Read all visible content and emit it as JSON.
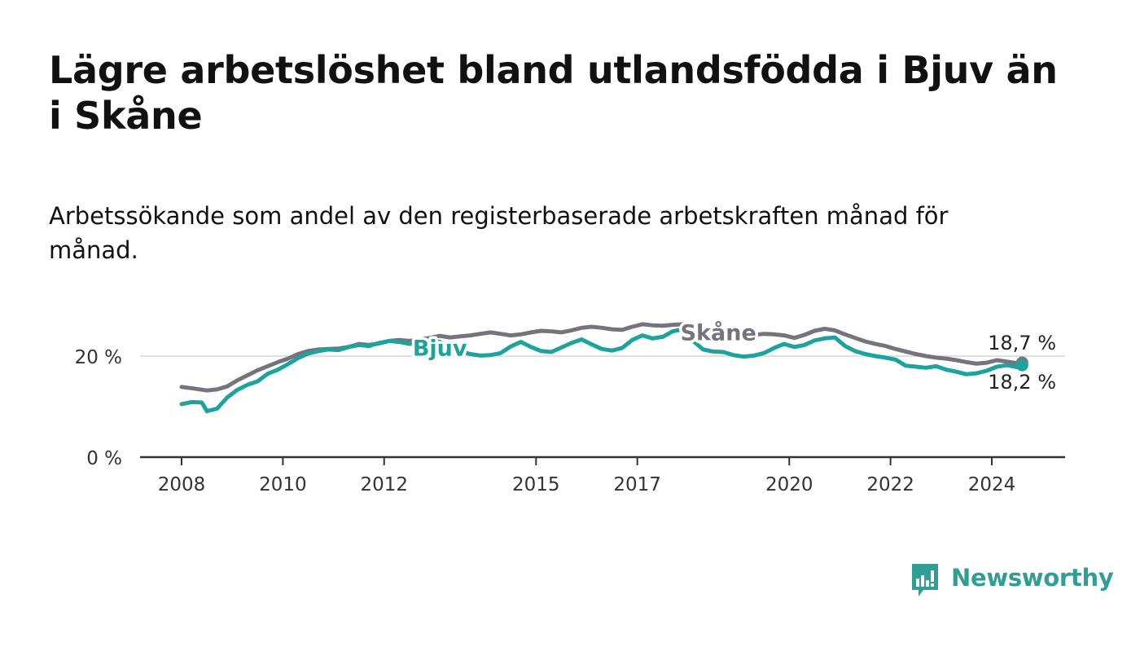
{
  "title": "Lägre arbetslöshet bland utlandsfödda i Bjuv än i Skåne",
  "subtitle": "Arbetssökande som andel av den registerbaserade arbetskraften månad för månad.",
  "logo": {
    "text": "Newsworthy",
    "icon": "bar-chart-speech-bubble-icon",
    "color": "#2f9e94"
  },
  "colors": {
    "bjuv": "#1ba39c",
    "skane": "#77737e",
    "grid": "#d6d6d6",
    "axis": "#333333"
  },
  "chart_data": {
    "type": "line",
    "title": "Lägre arbetslöshet bland utlandsfödda i Bjuv än i Skåne",
    "xlabel": "",
    "ylabel": "",
    "x_range": [
      2007.1,
      2025.4
    ],
    "ylim": [
      0,
      30
    ],
    "y_ticks": [
      {
        "value": 0,
        "label": "0 %"
      },
      {
        "value": 20,
        "label": "20 %"
      }
    ],
    "x_ticks": [
      {
        "value": 2008,
        "label": "2008"
      },
      {
        "value": 2010,
        "label": "2010"
      },
      {
        "value": 2012,
        "label": "2012"
      },
      {
        "value": 2015,
        "label": "2015"
      },
      {
        "value": 2017,
        "label": "2017"
      },
      {
        "value": 2020,
        "label": "2020"
      },
      {
        "value": 2022,
        "label": "2022"
      },
      {
        "value": 2024,
        "label": "2024"
      }
    ],
    "series": [
      {
        "name": "Skåne",
        "label": "Skåne",
        "color": "#77737e",
        "end_label": "18,7 %",
        "points": [
          [
            2008.0,
            13.9
          ],
          [
            2008.3,
            13.5
          ],
          [
            2008.5,
            13.2
          ],
          [
            2008.7,
            13.4
          ],
          [
            2008.9,
            14.0
          ],
          [
            2009.1,
            15.2
          ],
          [
            2009.3,
            16.2
          ],
          [
            2009.5,
            17.2
          ],
          [
            2009.7,
            18.0
          ],
          [
            2009.9,
            18.8
          ],
          [
            2010.1,
            19.5
          ],
          [
            2010.3,
            20.4
          ],
          [
            2010.5,
            21.0
          ],
          [
            2010.7,
            21.3
          ],
          [
            2010.9,
            21.4
          ],
          [
            2011.1,
            21.5
          ],
          [
            2011.3,
            21.8
          ],
          [
            2011.5,
            22.4
          ],
          [
            2011.7,
            22.2
          ],
          [
            2011.9,
            22.5
          ],
          [
            2012.1,
            23.0
          ],
          [
            2012.3,
            23.2
          ],
          [
            2012.5,
            23.0
          ],
          [
            2012.7,
            23.3
          ],
          [
            2012.9,
            23.6
          ],
          [
            2013.1,
            24.0
          ],
          [
            2013.3,
            23.7
          ],
          [
            2013.5,
            23.9
          ],
          [
            2013.7,
            24.1
          ],
          [
            2013.9,
            24.4
          ],
          [
            2014.1,
            24.7
          ],
          [
            2014.3,
            24.4
          ],
          [
            2014.5,
            24.1
          ],
          [
            2014.7,
            24.3
          ],
          [
            2014.9,
            24.7
          ],
          [
            2015.1,
            25.0
          ],
          [
            2015.3,
            24.9
          ],
          [
            2015.5,
            24.7
          ],
          [
            2015.7,
            25.1
          ],
          [
            2015.9,
            25.6
          ],
          [
            2016.1,
            25.8
          ],
          [
            2016.3,
            25.6
          ],
          [
            2016.5,
            25.3
          ],
          [
            2016.7,
            25.2
          ],
          [
            2016.9,
            25.8
          ],
          [
            2017.1,
            26.3
          ],
          [
            2017.3,
            26.1
          ],
          [
            2017.5,
            26.0
          ],
          [
            2017.7,
            26.2
          ],
          [
            2017.9,
            26.3
          ],
          [
            2018.1,
            25.6
          ],
          [
            2018.3,
            25.2
          ],
          [
            2018.5,
            24.8
          ],
          [
            2018.7,
            24.4
          ],
          [
            2018.9,
            24.1
          ],
          [
            2019.1,
            24.0
          ],
          [
            2019.3,
            24.2
          ],
          [
            2019.5,
            24.4
          ],
          [
            2019.7,
            24.3
          ],
          [
            2019.9,
            24.1
          ],
          [
            2020.1,
            23.6
          ],
          [
            2020.3,
            24.2
          ],
          [
            2020.5,
            25.0
          ],
          [
            2020.7,
            25.4
          ],
          [
            2020.9,
            25.1
          ],
          [
            2021.1,
            24.3
          ],
          [
            2021.3,
            23.6
          ],
          [
            2021.5,
            22.9
          ],
          [
            2021.7,
            22.4
          ],
          [
            2021.9,
            22.0
          ],
          [
            2022.1,
            21.4
          ],
          [
            2022.3,
            20.9
          ],
          [
            2022.5,
            20.4
          ],
          [
            2022.7,
            20.0
          ],
          [
            2022.9,
            19.7
          ],
          [
            2023.1,
            19.5
          ],
          [
            2023.3,
            19.2
          ],
          [
            2023.5,
            18.8
          ],
          [
            2023.7,
            18.5
          ],
          [
            2023.9,
            18.7
          ],
          [
            2024.1,
            19.2
          ],
          [
            2024.3,
            18.9
          ],
          [
            2024.5,
            18.6
          ],
          [
            2024.6,
            18.7
          ]
        ]
      },
      {
        "name": "Bjuv",
        "label": "Bjuv",
        "color": "#1ba39c",
        "end_label": "18,2 %",
        "points": [
          [
            2008.0,
            10.5
          ],
          [
            2008.2,
            10.9
          ],
          [
            2008.4,
            10.8
          ],
          [
            2008.5,
            9.1
          ],
          [
            2008.7,
            9.6
          ],
          [
            2008.9,
            11.8
          ],
          [
            2009.1,
            13.3
          ],
          [
            2009.3,
            14.3
          ],
          [
            2009.5,
            15.0
          ],
          [
            2009.7,
            16.5
          ],
          [
            2009.9,
            17.3
          ],
          [
            2010.1,
            18.4
          ],
          [
            2010.3,
            19.6
          ],
          [
            2010.5,
            20.5
          ],
          [
            2010.7,
            21.0
          ],
          [
            2010.9,
            21.3
          ],
          [
            2011.1,
            21.2
          ],
          [
            2011.3,
            21.8
          ],
          [
            2011.5,
            22.2
          ],
          [
            2011.7,
            22.0
          ],
          [
            2011.9,
            22.6
          ],
          [
            2012.1,
            23.0
          ],
          [
            2012.3,
            22.8
          ],
          [
            2012.5,
            22.4
          ],
          [
            2012.7,
            22.9
          ],
          [
            2012.9,
            23.2
          ],
          [
            2013.1,
            22.8
          ],
          [
            2013.3,
            22.0
          ],
          [
            2013.5,
            21.0
          ],
          [
            2013.7,
            20.4
          ],
          [
            2013.9,
            20.1
          ],
          [
            2014.1,
            20.2
          ],
          [
            2014.3,
            20.6
          ],
          [
            2014.5,
            21.9
          ],
          [
            2014.7,
            22.8
          ],
          [
            2014.9,
            21.8
          ],
          [
            2015.1,
            21.0
          ],
          [
            2015.3,
            20.8
          ],
          [
            2015.5,
            21.7
          ],
          [
            2015.7,
            22.6
          ],
          [
            2015.9,
            23.3
          ],
          [
            2016.1,
            22.3
          ],
          [
            2016.3,
            21.4
          ],
          [
            2016.5,
            21.1
          ],
          [
            2016.7,
            21.6
          ],
          [
            2016.9,
            23.2
          ],
          [
            2017.1,
            24.1
          ],
          [
            2017.3,
            23.5
          ],
          [
            2017.5,
            23.8
          ],
          [
            2017.7,
            24.9
          ],
          [
            2017.9,
            25.3
          ],
          [
            2018.1,
            23.0
          ],
          [
            2018.3,
            21.3
          ],
          [
            2018.5,
            20.9
          ],
          [
            2018.7,
            20.8
          ],
          [
            2018.9,
            20.2
          ],
          [
            2019.1,
            19.9
          ],
          [
            2019.3,
            20.1
          ],
          [
            2019.5,
            20.6
          ],
          [
            2019.7,
            21.6
          ],
          [
            2019.9,
            22.4
          ],
          [
            2020.1,
            21.8
          ],
          [
            2020.3,
            22.2
          ],
          [
            2020.5,
            23.1
          ],
          [
            2020.7,
            23.5
          ],
          [
            2020.9,
            23.7
          ],
          [
            2021.1,
            22.0
          ],
          [
            2021.3,
            21.0
          ],
          [
            2021.5,
            20.4
          ],
          [
            2021.7,
            20.0
          ],
          [
            2021.9,
            19.7
          ],
          [
            2022.1,
            19.3
          ],
          [
            2022.3,
            18.1
          ],
          [
            2022.5,
            17.9
          ],
          [
            2022.7,
            17.7
          ],
          [
            2022.9,
            18.0
          ],
          [
            2023.1,
            17.3
          ],
          [
            2023.3,
            16.9
          ],
          [
            2023.5,
            16.4
          ],
          [
            2023.7,
            16.6
          ],
          [
            2023.9,
            17.1
          ],
          [
            2024.1,
            17.9
          ],
          [
            2024.3,
            18.2
          ],
          [
            2024.5,
            17.8
          ],
          [
            2024.6,
            18.2
          ]
        ]
      }
    ],
    "annotations": [
      {
        "series": "Skåne",
        "text": "Skåne",
        "x": 2018.6,
        "y": 24.6
      },
      {
        "series": "Bjuv",
        "text": "Bjuv",
        "x": 2013.1,
        "y": 21.5
      }
    ]
  }
}
